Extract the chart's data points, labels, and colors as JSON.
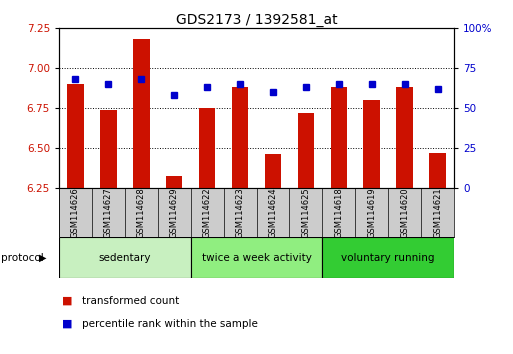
{
  "title": "GDS2173 / 1392581_at",
  "categories": [
    "GSM114626",
    "GSM114627",
    "GSM114628",
    "GSM114629",
    "GSM114622",
    "GSM114623",
    "GSM114624",
    "GSM114625",
    "GSM114618",
    "GSM114619",
    "GSM114620",
    "GSM114621"
  ],
  "red_values": [
    6.9,
    6.74,
    7.18,
    6.32,
    6.75,
    6.88,
    6.46,
    6.72,
    6.88,
    6.8,
    6.88,
    6.47
  ],
  "blue_values": [
    68,
    65,
    68,
    58,
    63,
    65,
    60,
    63,
    65,
    65,
    65,
    62
  ],
  "ylim_left": [
    6.25,
    7.25
  ],
  "ylim_right": [
    0,
    100
  ],
  "yticks_left": [
    6.25,
    6.5,
    6.75,
    7.0,
    7.25
  ],
  "yticks_right": [
    0,
    25,
    50,
    75,
    100
  ],
  "ytick_labels_right": [
    "0",
    "25",
    "50",
    "75",
    "100%"
  ],
  "groups": [
    {
      "label": "sedentary",
      "start": 0,
      "end": 4,
      "color": "#c8f0c0"
    },
    {
      "label": "twice a week activity",
      "start": 4,
      "end": 8,
      "color": "#90ee80"
    },
    {
      "label": "voluntary running",
      "start": 8,
      "end": 12,
      "color": "#33cc33"
    }
  ],
  "red_color": "#cc1100",
  "blue_color": "#0000cc",
  "baseline": 6.25,
  "legend_red": "transformed count",
  "legend_blue": "percentile rank within the sample",
  "protocol_label": "protocol",
  "xlabel_bg": "#cccccc",
  "plot_bg": "#ffffff"
}
